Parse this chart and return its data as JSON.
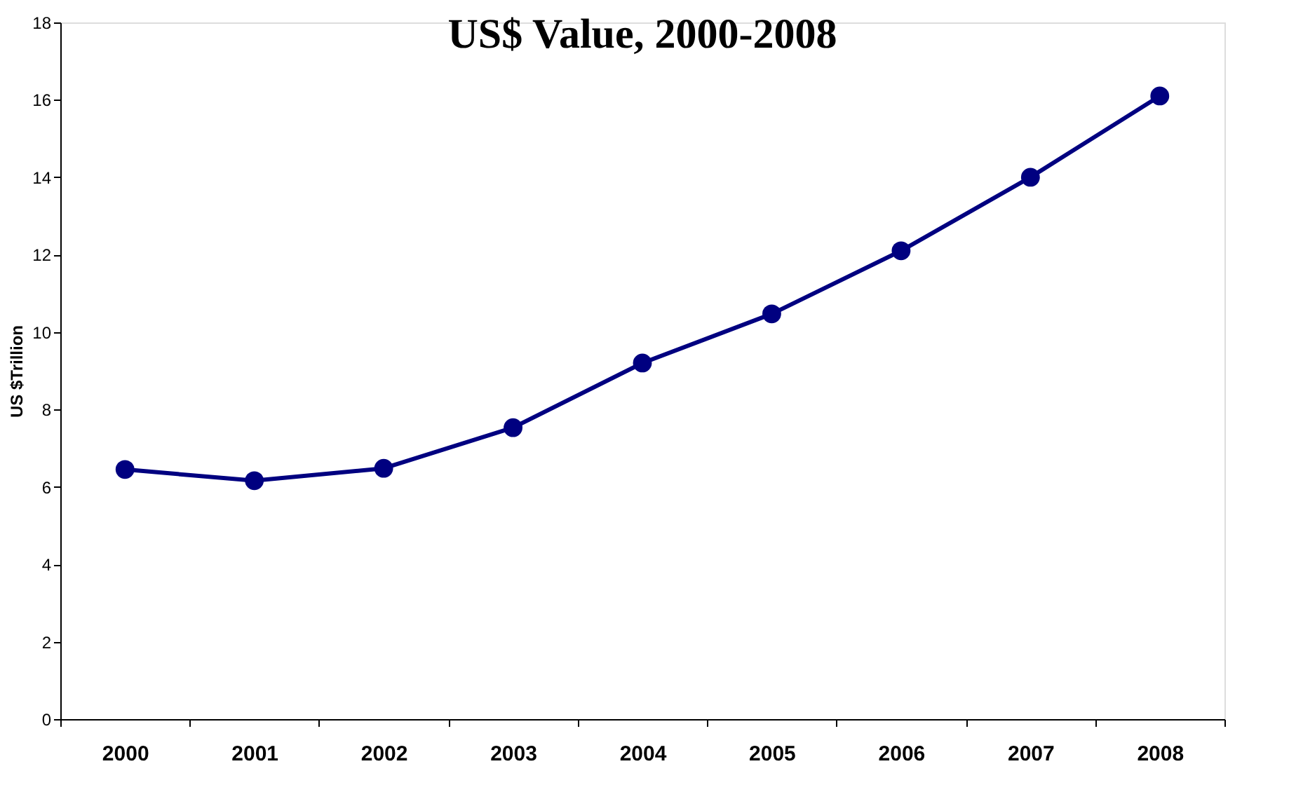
{
  "chart_data": {
    "type": "line",
    "title": "US$ Value, 2000-2008",
    "ylabel": "US $Trillion",
    "categories": [
      "2000",
      "2001",
      "2002",
      "2003",
      "2004",
      "2005",
      "2006",
      "2007",
      "2008"
    ],
    "series": [
      {
        "color": "#000080",
        "values": [
          6.45,
          6.16,
          6.48,
          7.53,
          9.2,
          10.47,
          12.1,
          14.0,
          16.1
        ]
      }
    ],
    "ylim": [
      0,
      18
    ],
    "yticks": [
      0,
      2,
      4,
      6,
      8,
      10,
      12,
      14,
      16,
      18
    ],
    "grid": false,
    "legend": false,
    "marker": "circle",
    "line_style": "solid"
  }
}
